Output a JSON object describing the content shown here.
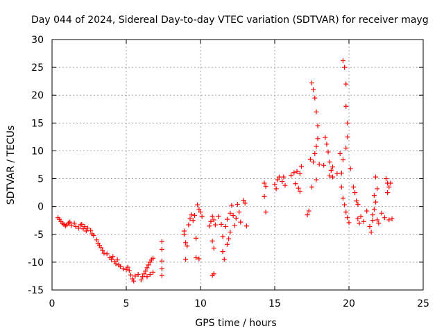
{
  "chart_data": {
    "type": "scatter",
    "title": "Day 044 of 2024, Sidereal Day-to-day VTEC variation (SDTVAR) for receiver mayg",
    "xlabel": "GPS time / hours",
    "ylabel": "SDTVAR / TECUs",
    "xlim": [
      0,
      25
    ],
    "ylim": [
      -15,
      30
    ],
    "xticks": [
      0,
      5,
      10,
      15,
      20,
      25
    ],
    "yticks": [
      -15,
      -10,
      -5,
      0,
      5,
      10,
      15,
      20,
      25,
      30
    ],
    "grid": true,
    "marker": "+",
    "colors": {
      "points": "#ff0000",
      "axes": "#000000",
      "grid": "#a0a0a0"
    },
    "series": [
      {
        "name": "SDTVAR",
        "points": [
          [
            0.4,
            -2.0
          ],
          [
            0.5,
            -2.3
          ],
          [
            0.6,
            -2.7
          ],
          [
            0.7,
            -3.0
          ],
          [
            0.8,
            -3.2
          ],
          [
            0.9,
            -3.5
          ],
          [
            1.0,
            -3.3
          ],
          [
            1.1,
            -3.0
          ],
          [
            1.2,
            -2.8
          ],
          [
            1.3,
            -3.4
          ],
          [
            1.5,
            -3.0
          ],
          [
            1.6,
            -3.6
          ],
          [
            1.8,
            -3.9
          ],
          [
            1.9,
            -3.3
          ],
          [
            2.0,
            -3.2
          ],
          [
            2.1,
            -4.0
          ],
          [
            2.2,
            -3.6
          ],
          [
            2.3,
            -4.4
          ],
          [
            2.4,
            -3.9
          ],
          [
            2.6,
            -4.3
          ],
          [
            2.7,
            -4.9
          ],
          [
            2.8,
            -5.2
          ],
          [
            3.0,
            -6.0
          ],
          [
            3.1,
            -6.6
          ],
          [
            3.2,
            -7.0
          ],
          [
            3.3,
            -7.4
          ],
          [
            3.4,
            -7.9
          ],
          [
            3.5,
            -8.4
          ],
          [
            3.7,
            -8.5
          ],
          [
            3.9,
            -9.2
          ],
          [
            4.0,
            -9.5
          ],
          [
            4.1,
            -9.0
          ],
          [
            4.2,
            -9.9
          ],
          [
            4.3,
            -10.3
          ],
          [
            4.4,
            -9.6
          ],
          [
            4.5,
            -10.5
          ],
          [
            4.6,
            -10.8
          ],
          [
            4.8,
            -11.2
          ],
          [
            5.0,
            -11.3
          ],
          [
            5.1,
            -10.9
          ],
          [
            5.2,
            -11.5
          ],
          [
            5.3,
            -12.3
          ],
          [
            5.4,
            -13.0
          ],
          [
            5.5,
            -13.4
          ],
          [
            5.6,
            -12.5
          ],
          [
            5.8,
            -12.2
          ],
          [
            6.0,
            -13.2
          ],
          [
            6.1,
            -12.6
          ],
          [
            6.2,
            -12.1
          ],
          [
            6.3,
            -11.6
          ],
          [
            6.4,
            -11.0
          ],
          [
            6.5,
            -10.5
          ],
          [
            6.6,
            -10.0
          ],
          [
            6.7,
            -9.6
          ],
          [
            6.8,
            -9.3
          ],
          [
            6.4,
            -12.6
          ],
          [
            6.6,
            -12.2
          ],
          [
            6.8,
            -11.8
          ],
          [
            7.4,
            -6.3
          ],
          [
            7.4,
            -7.7
          ],
          [
            7.4,
            -9.8
          ],
          [
            7.4,
            -11.2
          ],
          [
            7.4,
            -12.4
          ],
          [
            8.9,
            -4.4
          ],
          [
            8.9,
            -5.0
          ],
          [
            9.0,
            -6.5
          ],
          [
            9.0,
            -9.5
          ],
          [
            9.1,
            -7.1
          ],
          [
            9.2,
            -3.3
          ],
          [
            9.3,
            -2.2
          ],
          [
            9.4,
            -1.5
          ],
          [
            9.5,
            -2.5
          ],
          [
            9.6,
            -1.6
          ],
          [
            9.7,
            -5.7
          ],
          [
            9.7,
            -9.2
          ],
          [
            9.8,
            0.3
          ],
          [
            9.9,
            -0.5
          ],
          [
            10.0,
            -1.0
          ],
          [
            10.1,
            -1.8
          ],
          [
            9.9,
            -9.4
          ],
          [
            10.6,
            -3.5
          ],
          [
            10.7,
            -2.7
          ],
          [
            10.8,
            -1.8
          ],
          [
            10.9,
            -2.4
          ],
          [
            11.0,
            -3.3
          ],
          [
            10.8,
            -6.2
          ],
          [
            10.9,
            -7.5
          ],
          [
            10.8,
            -12.4
          ],
          [
            10.9,
            -12.1
          ],
          [
            11.2,
            -1.8
          ],
          [
            11.4,
            -3.2
          ],
          [
            11.5,
            -5.4
          ],
          [
            11.5,
            -8.1
          ],
          [
            11.6,
            -9.5
          ],
          [
            11.7,
            -3.6
          ],
          [
            11.8,
            -2.3
          ],
          [
            11.8,
            -6.8
          ],
          [
            11.9,
            -5.8
          ],
          [
            12.0,
            -4.6
          ],
          [
            12.0,
            -1.2
          ],
          [
            12.1,
            0.2
          ],
          [
            12.2,
            -1.6
          ],
          [
            12.3,
            -3.4
          ],
          [
            12.4,
            -2.1
          ],
          [
            12.5,
            0.4
          ],
          [
            12.6,
            -1.0
          ],
          [
            12.7,
            -2.8
          ],
          [
            12.9,
            1.1
          ],
          [
            13.0,
            0.6
          ],
          [
            13.1,
            -3.5
          ],
          [
            14.3,
            4.2
          ],
          [
            14.4,
            3.6
          ],
          [
            14.3,
            1.8
          ],
          [
            14.4,
            -1.0
          ],
          [
            15.0,
            4.0
          ],
          [
            15.1,
            3.2
          ],
          [
            15.2,
            4.8
          ],
          [
            15.3,
            5.3
          ],
          [
            15.5,
            4.5
          ],
          [
            15.6,
            5.3
          ],
          [
            15.7,
            3.8
          ],
          [
            16.1,
            5.6
          ],
          [
            16.3,
            6.1
          ],
          [
            16.5,
            6.3
          ],
          [
            16.7,
            5.9
          ],
          [
            16.8,
            7.2
          ],
          [
            16.4,
            4.1
          ],
          [
            16.6,
            3.3
          ],
          [
            16.7,
            2.7
          ],
          [
            17.2,
            -1.5
          ],
          [
            17.3,
            -0.8
          ],
          [
            17.4,
            8.5
          ],
          [
            17.5,
            3.5
          ],
          [
            17.6,
            8.0
          ],
          [
            17.5,
            22.2
          ],
          [
            17.6,
            21.0
          ],
          [
            17.7,
            19.5
          ],
          [
            17.8,
            17.0
          ],
          [
            17.9,
            14.5
          ],
          [
            17.9,
            12.2
          ],
          [
            17.8,
            10.8
          ],
          [
            17.7,
            9.5
          ],
          [
            17.8,
            4.8
          ],
          [
            18.0,
            7.6
          ],
          [
            18.3,
            7.4
          ],
          [
            18.4,
            12.4
          ],
          [
            18.5,
            11.2
          ],
          [
            18.6,
            9.8
          ],
          [
            18.7,
            8.0
          ],
          [
            18.8,
            6.5
          ],
          [
            18.9,
            5.3
          ],
          [
            18.7,
            5.5
          ],
          [
            18.9,
            7.1
          ],
          [
            19.2,
            5.9
          ],
          [
            19.4,
            9.5
          ],
          [
            19.6,
            26.2
          ],
          [
            19.7,
            25.0
          ],
          [
            19.8,
            22.0
          ],
          [
            19.8,
            18.0
          ],
          [
            19.9,
            15.0
          ],
          [
            19.9,
            12.5
          ],
          [
            19.8,
            10.5
          ],
          [
            19.6,
            8.4
          ],
          [
            19.5,
            6.0
          ],
          [
            19.5,
            3.5
          ],
          [
            19.6,
            1.5
          ],
          [
            19.7,
            0.3
          ],
          [
            19.8,
            -1.0
          ],
          [
            19.9,
            -2.0
          ],
          [
            20.0,
            -2.9
          ],
          [
            20.1,
            6.8
          ],
          [
            20.3,
            3.5
          ],
          [
            20.4,
            2.5
          ],
          [
            20.5,
            1.0
          ],
          [
            20.6,
            -2.2
          ],
          [
            20.7,
            -3.0
          ],
          [
            20.8,
            -1.8
          ],
          [
            20.6,
            0.4
          ],
          [
            21.0,
            -2.7
          ],
          [
            21.2,
            -0.8
          ],
          [
            21.4,
            -3.6
          ],
          [
            21.5,
            -4.6
          ],
          [
            21.6,
            -1.5
          ],
          [
            21.7,
            -0.5
          ],
          [
            21.8,
            0.8
          ],
          [
            21.8,
            5.3
          ],
          [
            21.9,
            3.2
          ],
          [
            21.7,
            2.0
          ],
          [
            21.6,
            -2.5
          ],
          [
            21.9,
            -2.4
          ],
          [
            22.0,
            -3.0
          ],
          [
            22.2,
            -1.2
          ],
          [
            22.5,
            5.0
          ],
          [
            22.6,
            4.2
          ],
          [
            22.7,
            3.5
          ],
          [
            22.8,
            4.2
          ],
          [
            22.6,
            2.5
          ],
          [
            22.4,
            -2.0
          ],
          [
            22.7,
            -2.4
          ],
          [
            22.9,
            -2.2
          ]
        ]
      }
    ]
  }
}
